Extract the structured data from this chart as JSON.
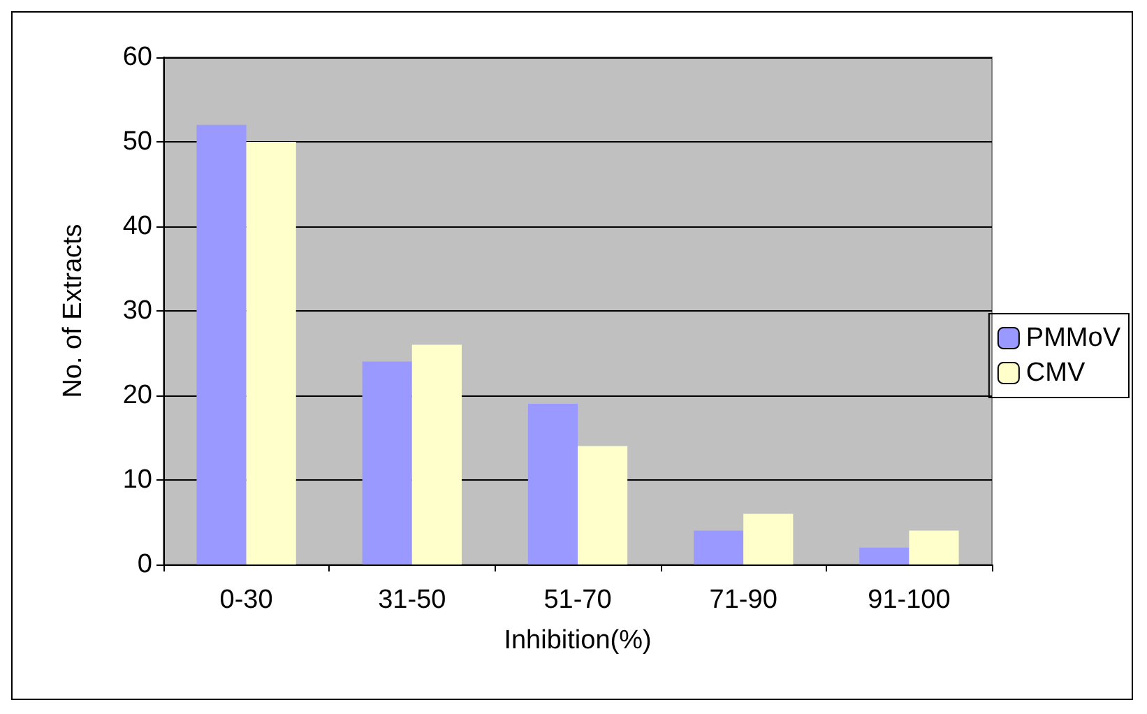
{
  "chart_data": {
    "type": "bar",
    "xlabel": "Inhibition(%)",
    "ylabel": "No. of Extracts",
    "categories": [
      "0-30",
      "31-50",
      "51-70",
      "71-90",
      "91-100"
    ],
    "series": [
      {
        "name": "PMMoV",
        "color": "#9999ff",
        "values": [
          52,
          24,
          19,
          4,
          2
        ]
      },
      {
        "name": "CMV",
        "color": "#ffffcc",
        "values": [
          50,
          26,
          14,
          6,
          4
        ]
      }
    ],
    "ylim": [
      0,
      60
    ],
    "yticks": [
      0,
      10,
      20,
      30,
      40,
      50,
      60
    ],
    "grid": "y",
    "legend": "right"
  }
}
